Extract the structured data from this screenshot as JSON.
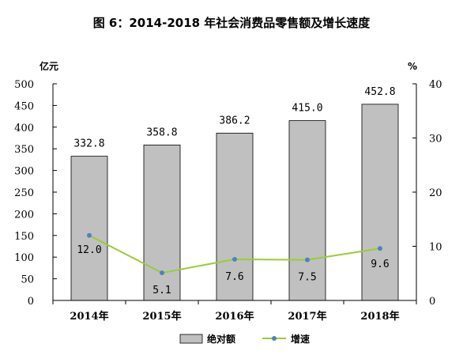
{
  "chart_data": {
    "type": "bar+line",
    "title": "图 6：2014-2018 年社会消费品零售额及增长速度",
    "categories": [
      "2014年",
      "2015年",
      "2016年",
      "2017年",
      "2018年"
    ],
    "series": [
      {
        "name": "绝对额",
        "type": "bar",
        "axis": "left",
        "values": [
          332.8,
          358.8,
          386.2,
          415.0,
          452.8
        ],
        "labels": [
          "332.8",
          "358.8",
          "386.2",
          "415.0",
          "452.8"
        ],
        "color": "#c0c0c0"
      },
      {
        "name": "增速",
        "type": "line",
        "axis": "right",
        "values": [
          12.0,
          5.1,
          7.6,
          7.5,
          9.6
        ],
        "labels": [
          "12.0",
          "5.1",
          "7.6",
          "7.5",
          "9.6"
        ],
        "color": "#9acd32",
        "marker_color": "#4f81bd"
      }
    ],
    "y_left": {
      "unit": "亿元",
      "range": [
        0,
        500
      ],
      "ticks": [
        "0",
        "50",
        "100",
        "150",
        "200",
        "250",
        "300",
        "350",
        "400",
        "450",
        "500"
      ]
    },
    "y_right": {
      "unit": "%",
      "range": [
        0,
        40
      ],
      "ticks": [
        "0",
        "10",
        "20",
        "30",
        "40"
      ]
    },
    "grid": false,
    "legend_position": "bottom-center"
  }
}
